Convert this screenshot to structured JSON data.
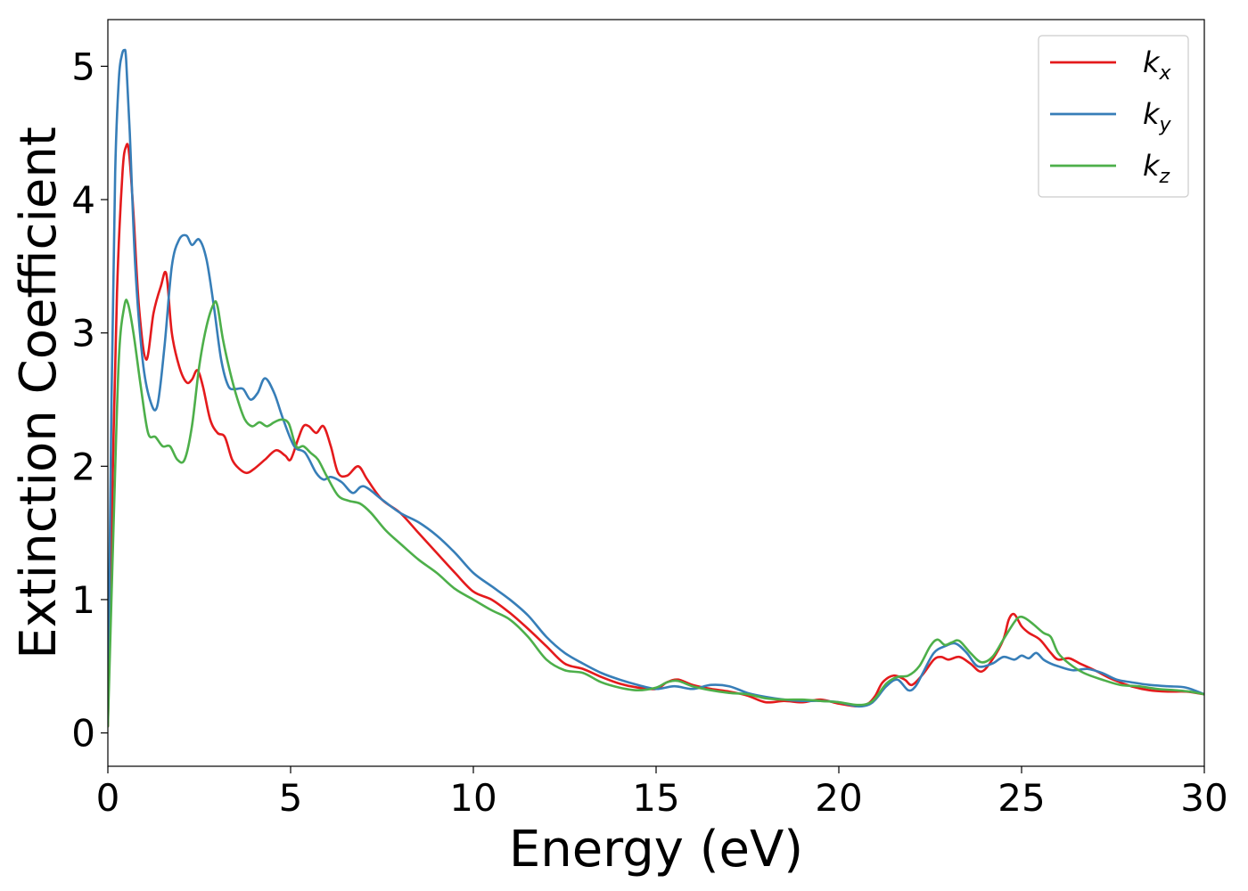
{
  "chart_data": {
    "type": "line",
    "xlabel": "Energy (eV)",
    "ylabel": "Extinction Coefficient",
    "xlim": [
      0,
      30
    ],
    "ylim": [
      -0.25,
      5.35
    ],
    "xticks": [
      0,
      5,
      10,
      15,
      20,
      25,
      30
    ],
    "yticks": [
      0,
      1,
      2,
      3,
      4,
      5
    ],
    "grid": false,
    "legend_position": "top-right",
    "series": [
      {
        "name": "k_x",
        "label_base": "k",
        "label_sub": "x",
        "color": "#e41a1c",
        "x": [
          0,
          0.1,
          0.25,
          0.4,
          0.5,
          0.58,
          0.7,
          0.85,
          1.05,
          1.25,
          1.45,
          1.6,
          1.75,
          1.95,
          2.15,
          2.3,
          2.45,
          2.6,
          2.8,
          3.0,
          3.2,
          3.4,
          3.6,
          3.8,
          4.0,
          4.3,
          4.6,
          4.85,
          5.0,
          5.2,
          5.35,
          5.5,
          5.7,
          5.9,
          6.1,
          6.3,
          6.55,
          6.85,
          7.1,
          7.5,
          8.0,
          8.5,
          9.0,
          9.5,
          10.0,
          10.5,
          11.0,
          11.5,
          12.0,
          12.5,
          13.0,
          13.5,
          14.0,
          14.5,
          15.0,
          15.3,
          15.6,
          16.0,
          16.5,
          17.0,
          17.5,
          18.0,
          18.5,
          19.0,
          19.5,
          20.0,
          20.5,
          20.8,
          21.0,
          21.2,
          21.5,
          21.8,
          22.0,
          22.3,
          22.6,
          22.8,
          23.0,
          23.3,
          23.6,
          23.9,
          24.2,
          24.5,
          24.65,
          24.8,
          25.0,
          25.2,
          25.5,
          25.8,
          26.0,
          26.3,
          26.6,
          27.0,
          27.5,
          28.0,
          28.5,
          29.0,
          29.5,
          30.0
        ],
        "y": [
          0.05,
          1.5,
          3.3,
          4.2,
          4.4,
          4.35,
          3.9,
          3.2,
          2.8,
          3.15,
          3.35,
          3.44,
          3.0,
          2.75,
          2.63,
          2.65,
          2.72,
          2.6,
          2.35,
          2.25,
          2.22,
          2.05,
          1.98,
          1.95,
          1.98,
          2.05,
          2.12,
          2.08,
          2.05,
          2.2,
          2.3,
          2.3,
          2.25,
          2.3,
          2.15,
          1.95,
          1.93,
          2.0,
          1.9,
          1.75,
          1.65,
          1.5,
          1.35,
          1.2,
          1.06,
          1.0,
          0.9,
          0.78,
          0.65,
          0.52,
          0.48,
          0.42,
          0.37,
          0.34,
          0.33,
          0.38,
          0.4,
          0.36,
          0.33,
          0.31,
          0.28,
          0.23,
          0.24,
          0.23,
          0.25,
          0.22,
          0.2,
          0.22,
          0.28,
          0.38,
          0.43,
          0.4,
          0.36,
          0.44,
          0.55,
          0.57,
          0.55,
          0.57,
          0.52,
          0.46,
          0.55,
          0.7,
          0.85,
          0.89,
          0.8,
          0.75,
          0.7,
          0.6,
          0.55,
          0.56,
          0.52,
          0.47,
          0.4,
          0.35,
          0.32,
          0.31,
          0.31,
          0.29
        ]
      },
      {
        "name": "k_y",
        "label_base": "k",
        "label_sub": "y",
        "color": "#377eb8",
        "x": [
          0,
          0.1,
          0.2,
          0.3,
          0.38,
          0.45,
          0.5,
          0.6,
          0.75,
          0.95,
          1.15,
          1.35,
          1.55,
          1.75,
          1.95,
          2.15,
          2.3,
          2.5,
          2.7,
          2.9,
          3.1,
          3.3,
          3.5,
          3.7,
          3.9,
          4.1,
          4.3,
          4.55,
          4.8,
          5.1,
          5.4,
          5.7,
          5.9,
          6.1,
          6.4,
          6.7,
          7.0,
          7.5,
          8.0,
          8.5,
          9.0,
          9.5,
          10.0,
          10.5,
          11.0,
          11.5,
          12.0,
          12.5,
          13.0,
          13.5,
          14.0,
          14.5,
          15.0,
          15.5,
          16.0,
          16.5,
          17.0,
          17.5,
          18.0,
          18.5,
          19.0,
          19.5,
          20.0,
          20.5,
          20.8,
          21.0,
          21.3,
          21.6,
          21.9,
          22.1,
          22.3,
          22.6,
          22.9,
          23.2,
          23.5,
          23.8,
          24.2,
          24.5,
          24.8,
          25.0,
          25.2,
          25.4,
          25.6,
          25.8,
          26.0,
          26.4,
          26.8,
          27.2,
          27.6,
          28.0,
          28.5,
          29.0,
          29.5,
          30.0
        ],
        "y": [
          0.1,
          2.5,
          4.2,
          4.9,
          5.08,
          5.12,
          5.05,
          4.5,
          3.5,
          2.8,
          2.5,
          2.45,
          2.9,
          3.5,
          3.7,
          3.73,
          3.66,
          3.7,
          3.55,
          3.2,
          2.8,
          2.6,
          2.58,
          2.58,
          2.5,
          2.55,
          2.66,
          2.55,
          2.35,
          2.15,
          2.1,
          1.95,
          1.9,
          1.92,
          1.88,
          1.8,
          1.85,
          1.75,
          1.65,
          1.58,
          1.48,
          1.35,
          1.2,
          1.1,
          1.0,
          0.88,
          0.72,
          0.6,
          0.52,
          0.45,
          0.4,
          0.36,
          0.33,
          0.35,
          0.33,
          0.36,
          0.35,
          0.3,
          0.27,
          0.25,
          0.24,
          0.24,
          0.23,
          0.2,
          0.21,
          0.25,
          0.35,
          0.4,
          0.32,
          0.35,
          0.45,
          0.6,
          0.65,
          0.67,
          0.6,
          0.5,
          0.52,
          0.57,
          0.55,
          0.58,
          0.56,
          0.6,
          0.55,
          0.52,
          0.5,
          0.47,
          0.48,
          0.45,
          0.4,
          0.38,
          0.36,
          0.35,
          0.34,
          0.29
        ]
      },
      {
        "name": "k_z",
        "label_base": "k",
        "label_sub": "z",
        "color": "#4daf4a",
        "x": [
          0,
          0.15,
          0.3,
          0.45,
          0.55,
          0.7,
          0.9,
          1.1,
          1.3,
          1.5,
          1.7,
          1.9,
          2.1,
          2.3,
          2.5,
          2.7,
          2.9,
          3.0,
          3.15,
          3.35,
          3.55,
          3.75,
          3.95,
          4.15,
          4.35,
          4.55,
          4.75,
          4.95,
          5.15,
          5.35,
          5.55,
          5.75,
          6.0,
          6.3,
          6.6,
          6.9,
          7.2,
          7.6,
          8.0,
          8.5,
          9.0,
          9.5,
          10.0,
          10.5,
          11.0,
          11.5,
          12.0,
          12.5,
          13.0,
          13.5,
          14.0,
          14.5,
          15.0,
          15.3,
          15.6,
          16.0,
          16.5,
          17.0,
          17.5,
          18.0,
          18.5,
          19.0,
          19.5,
          20.0,
          20.5,
          20.8,
          21.0,
          21.3,
          21.6,
          21.9,
          22.2,
          22.5,
          22.7,
          22.9,
          23.1,
          23.3,
          23.6,
          23.9,
          24.2,
          24.5,
          24.8,
          24.95,
          25.1,
          25.3,
          25.6,
          25.8,
          26.0,
          26.3,
          26.7,
          27.2,
          27.7,
          28.2,
          28.7,
          29.2,
          29.6,
          30.0
        ],
        "y": [
          0.05,
          1.5,
          2.8,
          3.2,
          3.22,
          3.0,
          2.6,
          2.25,
          2.22,
          2.15,
          2.15,
          2.05,
          2.05,
          2.3,
          2.75,
          3.05,
          3.22,
          3.2,
          2.95,
          2.7,
          2.5,
          2.35,
          2.3,
          2.33,
          2.3,
          2.33,
          2.35,
          2.32,
          2.15,
          2.15,
          2.1,
          2.05,
          1.92,
          1.78,
          1.74,
          1.72,
          1.65,
          1.52,
          1.42,
          1.3,
          1.2,
          1.08,
          1.0,
          0.92,
          0.85,
          0.72,
          0.55,
          0.47,
          0.45,
          0.38,
          0.34,
          0.32,
          0.34,
          0.38,
          0.39,
          0.35,
          0.32,
          0.3,
          0.29,
          0.26,
          0.25,
          0.25,
          0.24,
          0.23,
          0.21,
          0.22,
          0.26,
          0.37,
          0.42,
          0.43,
          0.5,
          0.65,
          0.7,
          0.66,
          0.68,
          0.69,
          0.6,
          0.53,
          0.57,
          0.7,
          0.83,
          0.87,
          0.86,
          0.82,
          0.75,
          0.72,
          0.6,
          0.52,
          0.45,
          0.4,
          0.36,
          0.35,
          0.33,
          0.32,
          0.31,
          0.29
        ]
      }
    ]
  }
}
